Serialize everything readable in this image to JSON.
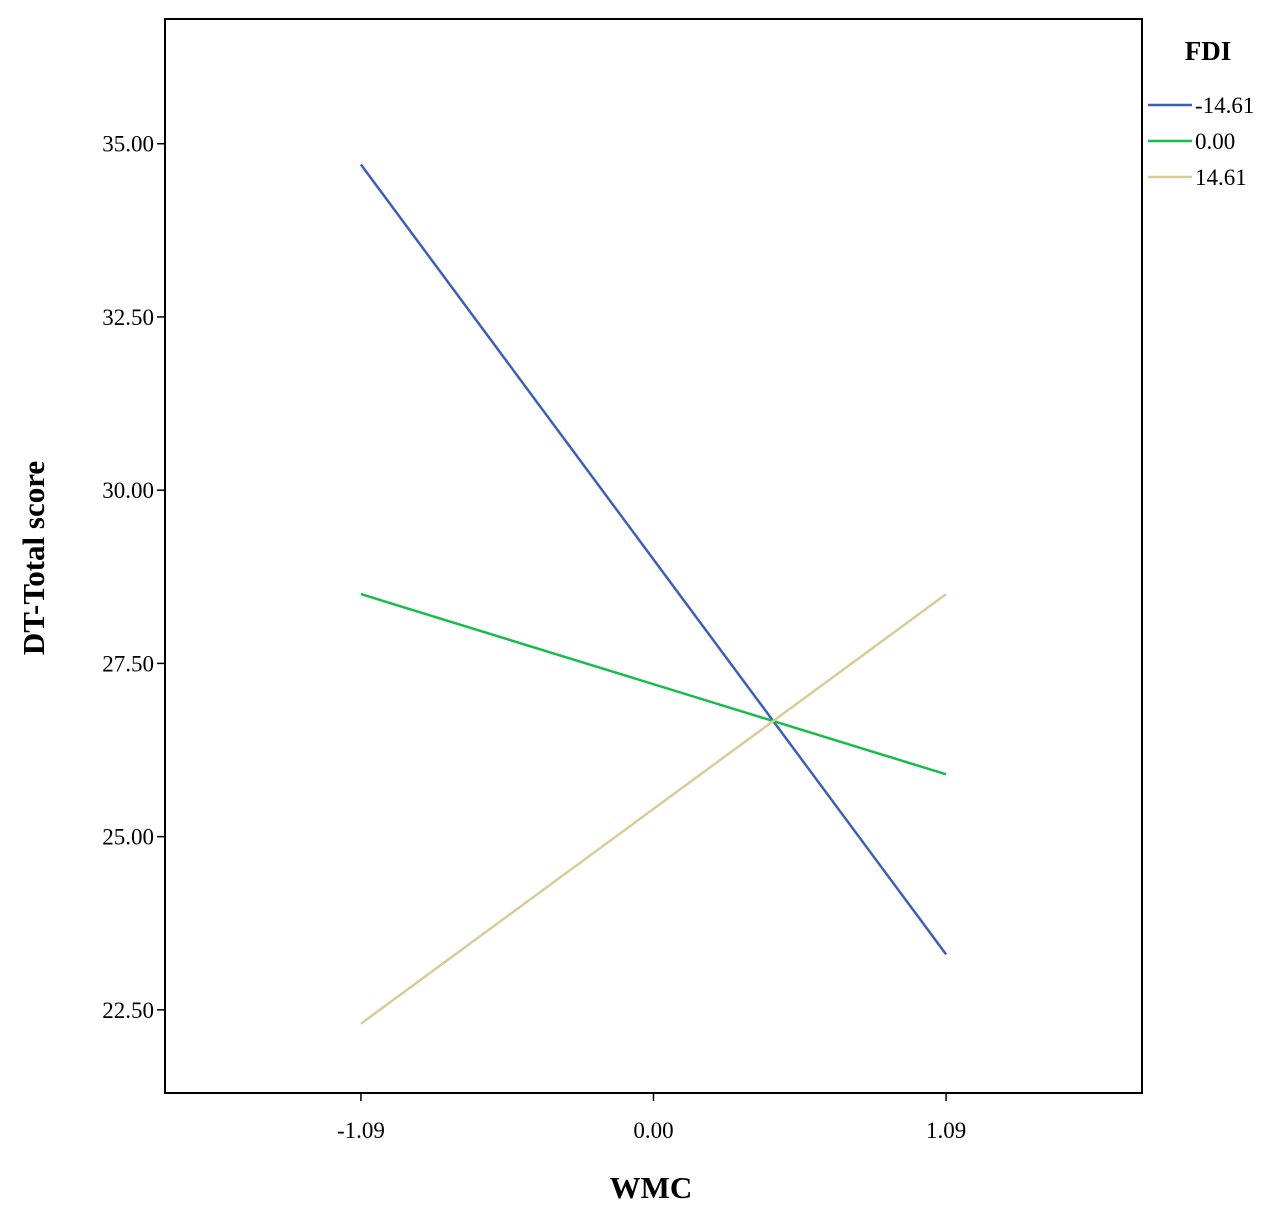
{
  "chart_data": {
    "type": "line",
    "x": [
      -1.09,
      1.09
    ],
    "xticks": [
      "-1.09",
      "0.00",
      "1.09"
    ],
    "xtick_values": [
      -1.09,
      0.0,
      1.09
    ],
    "xlim": [
      -1.82,
      1.82
    ],
    "yticks": [
      "22.50",
      "25.00",
      "27.50",
      "30.00",
      "32.50",
      "35.00"
    ],
    "ytick_values": [
      22.5,
      25.0,
      27.5,
      30.0,
      32.5,
      35.0
    ],
    "ylim": [
      21.3,
      36.8
    ],
    "xlabel": "WMC",
    "ylabel": "DT-Total score",
    "grid": false,
    "legend": {
      "title": "FDI",
      "position": "top-right, outside plot"
    },
    "series": [
      {
        "name": "-14.61",
        "color": "#3f5fb5",
        "values": [
          34.7,
          23.3
        ]
      },
      {
        "name": "0.00",
        "color": "#17bd4b",
        "values": [
          28.5,
          25.9
        ]
      },
      {
        "name": "14.61",
        "color": "#d9cc9a",
        "values": [
          22.3,
          28.5
        ]
      }
    ]
  }
}
